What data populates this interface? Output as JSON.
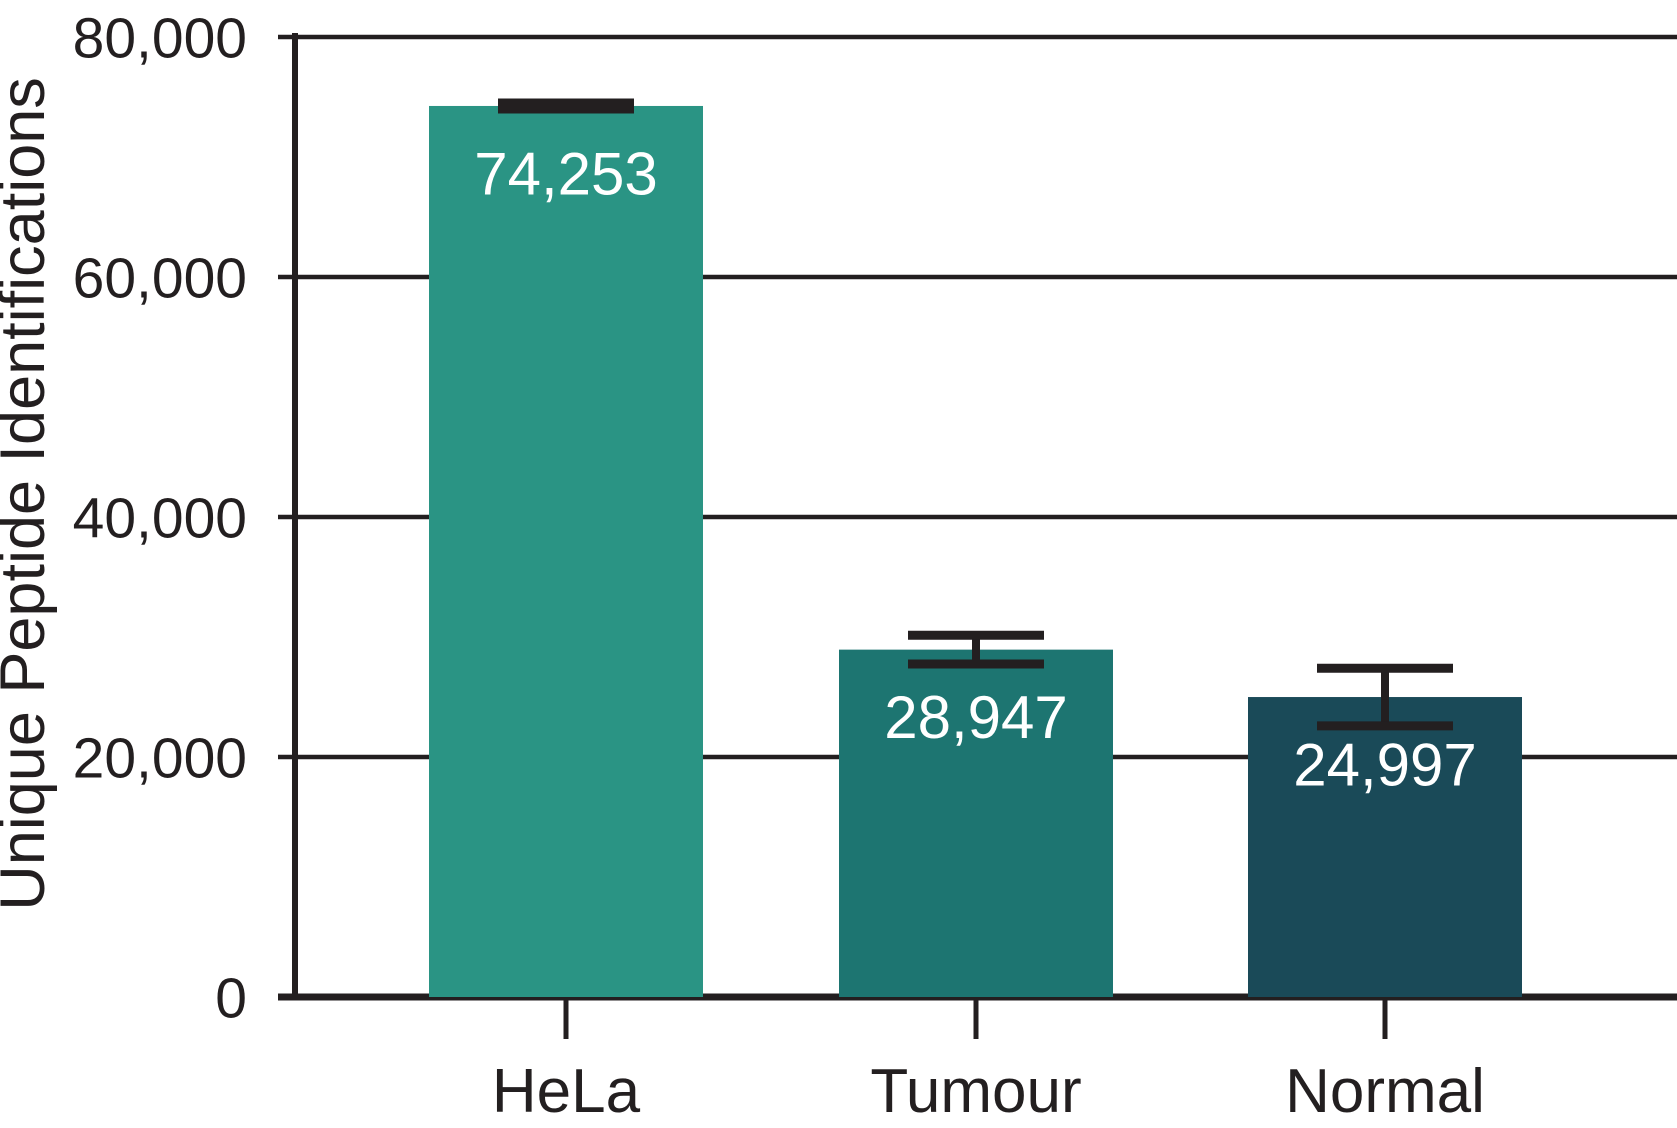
{
  "chart_data": {
    "type": "bar",
    "title": "",
    "xlabel": "",
    "ylabel": "Unique Peptide Identifications",
    "categories": [
      "HeLa",
      "Tumour",
      "Normal"
    ],
    "values": [
      74253,
      28947,
      24997
    ],
    "value_labels": [
      "74,253",
      "28,947",
      "24,997"
    ],
    "errors": [
      250,
      1200,
      2400
    ],
    "bar_colors": [
      "#2a9484",
      "#1d7571",
      "#1a4a58"
    ],
    "ylim": [
      0,
      80000
    ],
    "yticks": [
      0,
      20000,
      40000,
      60000,
      80000
    ],
    "ytick_labels": [
      "0",
      "20,000",
      "40,000",
      "60,000",
      "80,000"
    ],
    "grid": true,
    "legend_position": "none",
    "axis_color": "#231f20",
    "value_label_color": "#ffffff",
    "background_color": "#ffffff"
  }
}
